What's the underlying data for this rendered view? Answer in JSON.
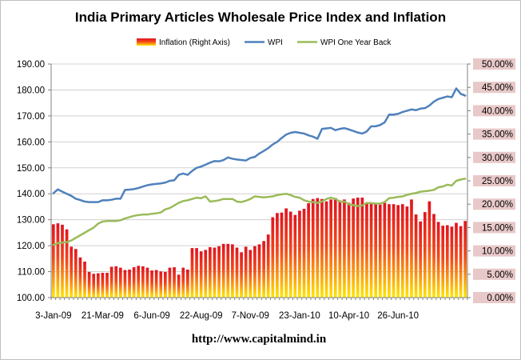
{
  "chart_data": {
    "type": "bar+line",
    "title": "India Primary Articles Wholesale Price Index and Inflation",
    "source_url": "http://www.capitalmind.in",
    "legend": {
      "placement": "top",
      "entries": [
        "Inflation (Right Axis)",
        "WPI",
        "WPI One Year Back"
      ]
    },
    "grid": true,
    "y_left": {
      "min": 100,
      "max": 190,
      "step": 10,
      "tick_labels": [
        "100.00",
        "110.00",
        "120.00",
        "130.00",
        "140.00",
        "150.00",
        "160.00",
        "170.00",
        "180.00",
        "190.00"
      ]
    },
    "y_right": {
      "min": 0,
      "max": 0.5,
      "step": 0.05,
      "tick_labels": [
        "0.00%",
        "5.00%",
        "10.00%",
        "15.00%",
        "20.00%",
        "25.00%",
        "30.00%",
        "35.00%",
        "40.00%",
        "45.00%",
        "50.00%"
      ]
    },
    "x_tick_labels": [
      "3-Jan-09",
      "21-Mar-09",
      "6-Jun-09",
      "22-Aug-09",
      "7-Nov-09",
      "23-Jan-10",
      "10-Apr-10",
      "26-Jun-10"
    ],
    "x_tick_every": 11,
    "colors": {
      "wpi": "#4f81bd",
      "wpi_one_year_back": "#9bbb59",
      "bar_top": "#e0141e",
      "bar_bottom": "#ffe800",
      "right_label_bg": "#e8c8c8",
      "grid": "#d0d0d0"
    },
    "series": [
      {
        "name": "Inflation (Right Axis)",
        "axis": "right",
        "type": "bar",
        "values": [
          0.157,
          0.159,
          0.156,
          0.146,
          0.109,
          0.104,
          0.086,
          0.077,
          0.055,
          0.051,
          0.052,
          0.053,
          0.053,
          0.066,
          0.067,
          0.064,
          0.059,
          0.06,
          0.065,
          0.068,
          0.067,
          0.064,
          0.058,
          0.059,
          0.056,
          0.055,
          0.064,
          0.065,
          0.049,
          0.064,
          0.06,
          0.106,
          0.106,
          0.099,
          0.102,
          0.108,
          0.107,
          0.11,
          0.115,
          0.115,
          0.114,
          0.107,
          0.097,
          0.109,
          0.102,
          0.11,
          0.114,
          0.121,
          0.135,
          0.172,
          0.181,
          0.182,
          0.191,
          0.184,
          0.177,
          0.186,
          0.19,
          0.202,
          0.211,
          0.213,
          0.211,
          0.206,
          0.21,
          0.213,
          0.208,
          0.21,
          0.203,
          0.212,
          0.214,
          0.214,
          0.203,
          0.203,
          0.2,
          0.199,
          0.203,
          0.2,
          0.2,
          0.198,
          0.2,
          0.195,
          0.21,
          0.178,
          0.163,
          0.183,
          0.206,
          0.179,
          0.162,
          0.154,
          0.155,
          0.152,
          0.16,
          0.153,
          0.164
        ]
      },
      {
        "name": "WPI",
        "axis": "left",
        "type": "line",
        "values": [
          140.2,
          141.7,
          140.8,
          140.0,
          139.2,
          138.1,
          137.6,
          137.0,
          136.8,
          136.8,
          136.8,
          137.5,
          137.5,
          137.7,
          138.1,
          138.1,
          141.5,
          141.6,
          141.8,
          142.2,
          142.8,
          143.3,
          143.6,
          143.8,
          144.0,
          144.3,
          145.0,
          145.2,
          147.3,
          147.8,
          147.3,
          148.8,
          150.0,
          150.5,
          151.2,
          152.0,
          152.6,
          152.5,
          153.0,
          154.0,
          153.5,
          153.2,
          153.0,
          152.8,
          153.8,
          154.2,
          155.5,
          156.5,
          157.6,
          159.0,
          160.0,
          161.5,
          162.8,
          163.5,
          163.8,
          163.5,
          163.2,
          162.5,
          162.0,
          161.2,
          165.0,
          165.2,
          165.4,
          164.5,
          165.0,
          165.3,
          164.8,
          164.2,
          163.6,
          163.2,
          164.0,
          166.0,
          166.0,
          166.5,
          167.5,
          170.5,
          170.5,
          170.8,
          171.5,
          172.0,
          172.5,
          172.2,
          172.8,
          173.0,
          174.0,
          175.5,
          176.5,
          177.0,
          177.5,
          177.2,
          180.6,
          178.5,
          177.8
        ]
      },
      {
        "name": "WPI One Year Back",
        "axis": "left",
        "type": "line",
        "values": [
          120.3,
          121.0,
          121.2,
          121.4,
          122.0,
          123.0,
          124.0,
          125.0,
          126.0,
          127.0,
          128.5,
          129.3,
          129.5,
          129.5,
          129.5,
          129.8,
          130.5,
          131.0,
          131.5,
          131.8,
          132.0,
          132.0,
          132.3,
          132.5,
          132.8,
          134.0,
          134.5,
          135.5,
          136.5,
          137.2,
          137.5,
          138.0,
          138.5,
          138.3,
          139.0,
          137.0,
          137.2,
          137.5,
          138.0,
          138.0,
          138.0,
          137.0,
          136.8,
          137.3,
          138.0,
          139.0,
          138.8,
          138.6,
          138.8,
          139.0,
          139.5,
          139.8,
          140.0,
          139.5,
          138.8,
          138.5,
          137.5,
          137.0,
          136.8,
          136.5,
          137.0,
          138.0,
          138.5,
          138.0,
          137.0,
          137.0,
          136.0,
          135.6,
          135.3,
          135.5,
          136.5,
          136.4,
          136.2,
          136.2,
          136.8,
          138.3,
          138.5,
          138.8,
          139.0,
          139.6,
          140.0,
          140.3,
          140.8,
          141.0,
          141.2,
          141.5,
          142.5,
          142.8,
          143.5,
          143.2,
          145.0,
          145.5,
          145.8
        ]
      }
    ]
  }
}
